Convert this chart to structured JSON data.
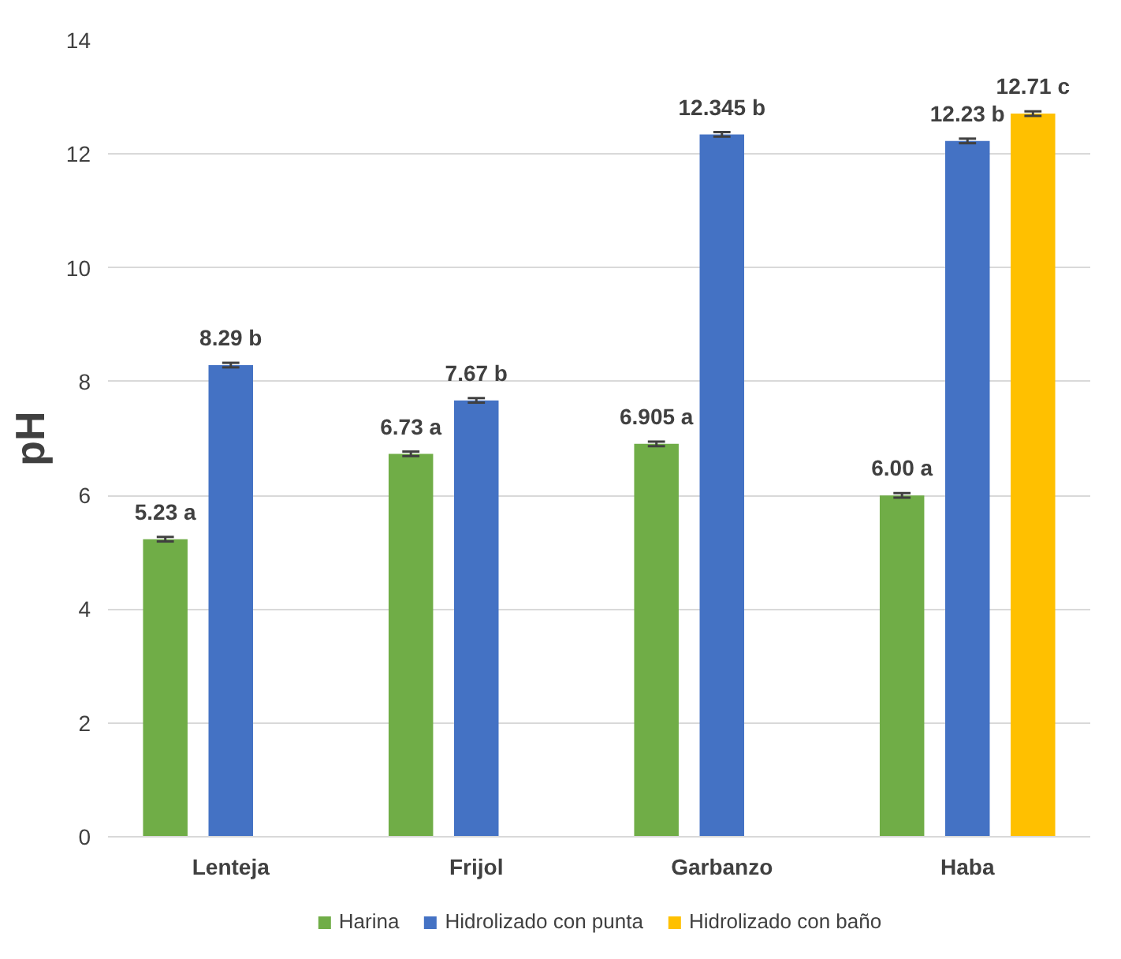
{
  "chart_data": {
    "type": "bar",
    "ylabel": "pH",
    "categories": [
      "Lenteja",
      "Frijol",
      "Garbanzo",
      "Haba"
    ],
    "series": [
      {
        "name": "Harina",
        "color": "#70ad47",
        "values": [
          5.23,
          6.73,
          6.905,
          6.0
        ],
        "errors": [
          0.04,
          0.04,
          0.04,
          0.04
        ],
        "value_labels": [
          "5.23 a",
          "6.73 a",
          "6.905 a",
          "6.00 a"
        ]
      },
      {
        "name": "Hidrolizado con punta",
        "color": "#4472c4",
        "values": [
          8.29,
          7.67,
          12.345,
          12.23
        ],
        "errors": [
          0.04,
          0.04,
          0.04,
          0.04
        ],
        "value_labels": [
          "8.29 b",
          "7.67 b",
          "12.345 b",
          "12.23 b"
        ]
      },
      {
        "name": "Hidrolizado con baño",
        "color": "#ffc000",
        "values": [
          null,
          null,
          null,
          12.71
        ],
        "errors": [
          null,
          null,
          null,
          0.04
        ],
        "value_labels": [
          null,
          null,
          null,
          "12.71 c"
        ]
      }
    ],
    "ylim": [
      0,
      14
    ],
    "yticks": [
      0,
      2,
      4,
      6,
      8,
      10,
      12,
      14
    ],
    "grid": "y",
    "legend": "bottom"
  }
}
